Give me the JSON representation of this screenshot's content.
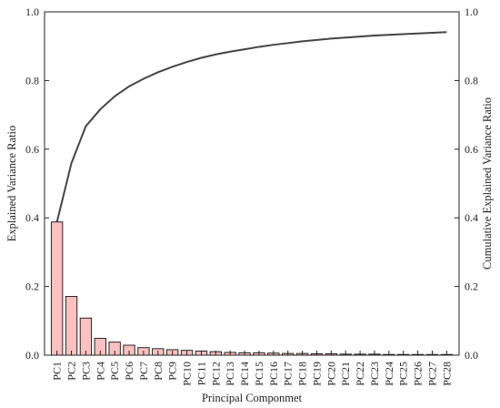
{
  "chart_data": {
    "type": "bar",
    "title": "",
    "xlabel": "Principal Componmet",
    "ylabel": "Explained Variance Ratio",
    "y2label": "Cumulative Explained Variance Ratio",
    "categories": [
      "PC1",
      "PC2",
      "PC3",
      "PC4",
      "PC5",
      "PC6",
      "PC7",
      "PC8",
      "PC9",
      "PC10",
      "PC11",
      "PC12",
      "PC13",
      "PC14",
      "PC15",
      "PC16",
      "PC17",
      "PC18",
      "PC19",
      "PC20",
      "PC21",
      "PC22",
      "PC23",
      "PC24",
      "PC25",
      "PC26",
      "PC27",
      "PC28"
    ],
    "ylim": [
      0,
      1.0
    ],
    "y2lim": [
      0,
      1.0
    ],
    "yticks": [
      "0.0",
      "0.2",
      "0.4",
      "0.6",
      "0.8",
      "1.0"
    ],
    "y2ticks": [
      "0.0",
      "0.2",
      "0.4",
      "0.6",
      "0.8",
      "1.0"
    ],
    "grid": false,
    "series": [
      {
        "type": "bar",
        "axis": "left",
        "color": "#ffc0c0",
        "values": [
          0.388,
          0.171,
          0.108,
          0.049,
          0.038,
          0.029,
          0.022,
          0.019,
          0.016,
          0.014,
          0.012,
          0.01,
          0.008,
          0.007,
          0.007,
          0.006,
          0.005,
          0.005,
          0.004,
          0.004,
          0.003,
          0.003,
          0.003,
          0.002,
          0.002,
          0.002,
          0.002,
          0.002
        ]
      },
      {
        "type": "line",
        "axis": "right",
        "color": "#444444",
        "values": [
          0.388,
          0.559,
          0.667,
          0.716,
          0.754,
          0.783,
          0.805,
          0.824,
          0.84,
          0.854,
          0.866,
          0.876,
          0.884,
          0.891,
          0.898,
          0.904,
          0.909,
          0.914,
          0.918,
          0.922,
          0.925,
          0.928,
          0.931,
          0.933,
          0.935,
          0.937,
          0.939,
          0.941
        ]
      }
    ]
  }
}
